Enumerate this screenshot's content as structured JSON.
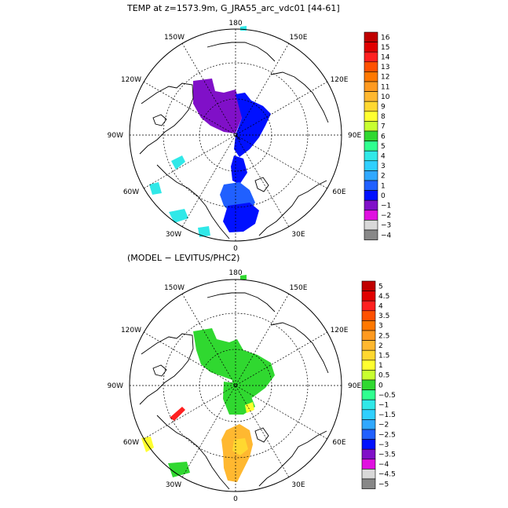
{
  "top_panel": {
    "title": "TEMP at z=1573.9m, G_JRA55_arc_vdc01 [44-61]",
    "lon_labels": {
      "top": "180",
      "bottom": "0",
      "left": "90W",
      "right": "90E",
      "ul1": "150W",
      "ul2": "120W",
      "ur1": "150E",
      "ur2": "120E",
      "ll1": "60W",
      "ll2": "30W",
      "lr1": "60E",
      "lr2": "30E"
    },
    "colorbar": {
      "labels": [
        "16",
        "15",
        "14",
        "13",
        "12",
        "11",
        "10",
        "9",
        "8",
        "7",
        "6",
        "5",
        "4",
        "3",
        "2",
        "1",
        "0",
        "−1",
        "−2",
        "−3",
        "−4"
      ],
      "colors": [
        "#c00000",
        "#e00000",
        "#ff2020",
        "#ff5000",
        "#ff7800",
        "#ff9a20",
        "#ffb830",
        "#ffd830",
        "#ffff30",
        "#c8ff30",
        "#30d830",
        "#30ff90",
        "#30e8e8",
        "#30d0ff",
        "#30a8ff",
        "#2060ff",
        "#0010ff",
        "#8010c8",
        "#e010e0",
        "#d8d8d8",
        "#888888"
      ]
    }
  },
  "bottom_panel": {
    "title": "(MODEL − LEVITUS/PHC2)",
    "lon_labels": {
      "top": "180",
      "bottom": "0",
      "left": "90W",
      "right": "90E",
      "ul1": "150W",
      "ul2": "120W",
      "ur1": "150E",
      "ur2": "120E",
      "ll1": "60W",
      "ll2": "30W",
      "lr1": "60E",
      "lr2": "30E"
    },
    "colorbar": {
      "labels": [
        "5",
        "4.5",
        "4",
        "3.5",
        "3",
        "2.5",
        "2",
        "1.5",
        "1",
        "0.5",
        "0",
        "−0.5",
        "−1",
        "−1.5",
        "−2",
        "−2.5",
        "−3",
        "−3.5",
        "−4",
        "−4.5",
        "−5"
      ],
      "colors": [
        "#c00000",
        "#e00000",
        "#ff2020",
        "#ff5000",
        "#ff7800",
        "#ff9a20",
        "#ffb830",
        "#ffd830",
        "#ffff30",
        "#c8ff30",
        "#30d830",
        "#30ff90",
        "#30e8e8",
        "#30d0ff",
        "#30a8ff",
        "#2060ff",
        "#0010ff",
        "#8010c8",
        "#e010e0",
        "#d8d8d8",
        "#888888"
      ]
    }
  }
}
